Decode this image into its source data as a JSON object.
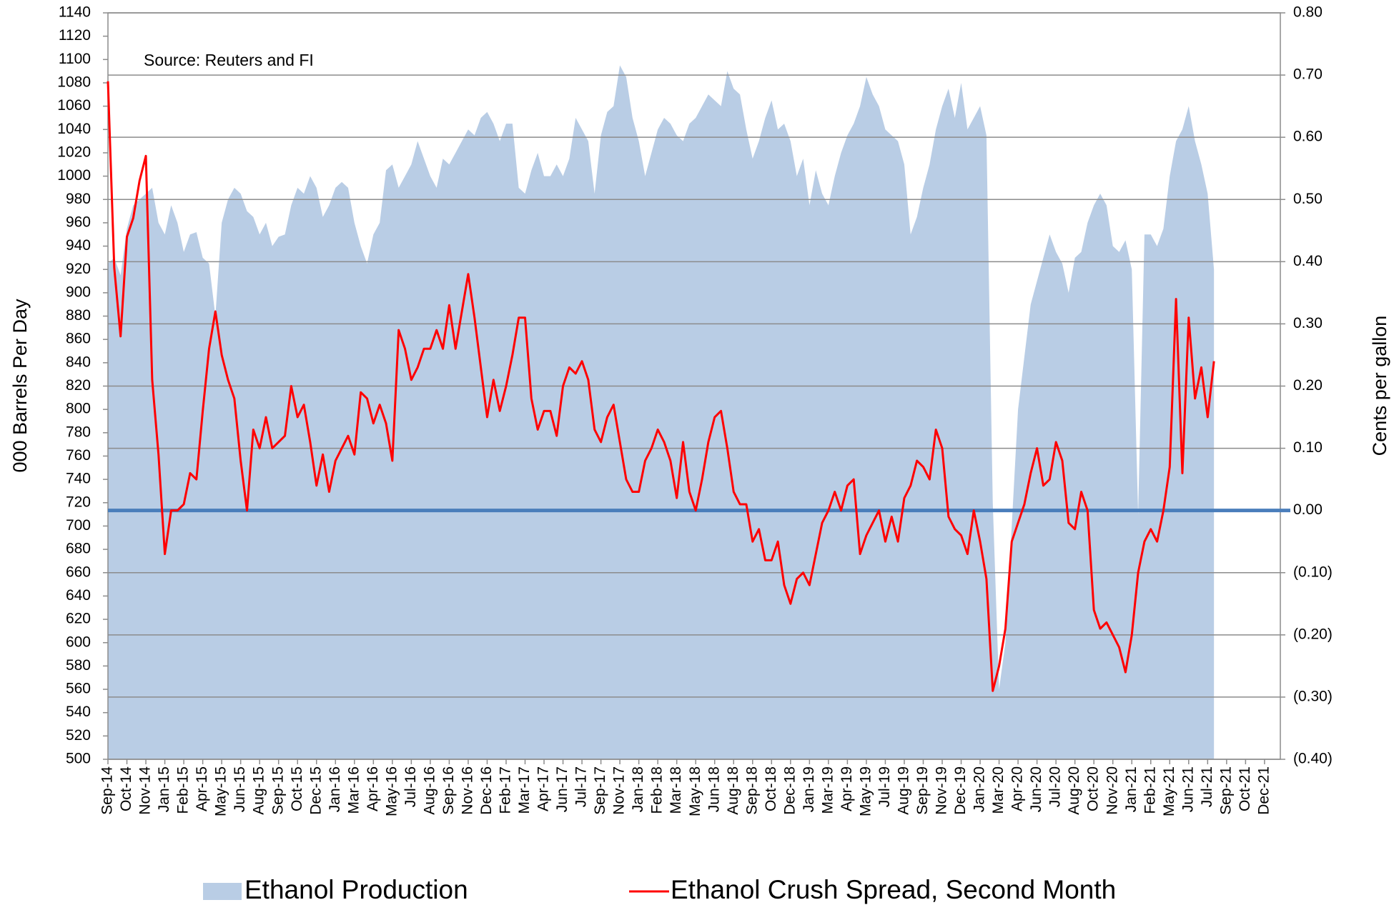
{
  "chart_data": {
    "type": "combo",
    "annotation": "Source: Reuters and FI",
    "ylabel": "000 Barrels Per Day",
    "y2label": "Cents per gallon",
    "legend": "bottom",
    "grid": true,
    "ylim": [
      500,
      1140
    ],
    "yticks": [
      500,
      520,
      540,
      560,
      580,
      600,
      620,
      640,
      660,
      680,
      700,
      720,
      740,
      760,
      780,
      800,
      820,
      840,
      860,
      880,
      900,
      920,
      940,
      960,
      980,
      1000,
      1020,
      1040,
      1060,
      1080,
      1100,
      1120,
      1140
    ],
    "y2lim": [
      -0.4,
      0.8
    ],
    "y2ticks": [
      {
        "value": 0.8,
        "label": "0.80"
      },
      {
        "value": 0.7,
        "label": "0.70"
      },
      {
        "value": 0.6,
        "label": "0.60"
      },
      {
        "value": 0.5,
        "label": "0.50"
      },
      {
        "value": 0.4,
        "label": "0.40"
      },
      {
        "value": 0.3,
        "label": "0.30"
      },
      {
        "value": 0.2,
        "label": "0.20"
      },
      {
        "value": 0.1,
        "label": "0.10"
      },
      {
        "value": 0,
        "label": "0.00"
      },
      {
        "value": -0.1,
        "label": "(0.10)"
      },
      {
        "value": -0.2,
        "label": "(0.20)"
      },
      {
        "value": -0.3,
        "label": "(0.30)"
      },
      {
        "value": -0.4,
        "label": "(0.40)"
      }
    ],
    "y2tick_negative_color": "#ff0000",
    "reference_line": {
      "value": 0,
      "axis": "y2",
      "color": "#4a7ebb"
    },
    "categories": [
      "Sep-14",
      null,
      null,
      "Oct-14",
      null,
      null,
      "Nov-14",
      null,
      null,
      "Jan-15",
      null,
      null,
      "Feb-15",
      null,
      null,
      "Apr-15",
      null,
      null,
      "May-15",
      null,
      null,
      "Jun-15",
      null,
      null,
      "Aug-15",
      null,
      null,
      "Sep-15",
      null,
      null,
      "Oct-15",
      null,
      null,
      "Dec-15",
      null,
      null,
      "Jan-16",
      null,
      null,
      "Mar-16",
      null,
      null,
      "Apr-16",
      null,
      null,
      "May-16",
      null,
      null,
      "Jul-16",
      null,
      null,
      "Aug-16",
      null,
      null,
      "Sep-16",
      null,
      null,
      "Nov-16",
      null,
      null,
      "Dec-16",
      null,
      null,
      "Feb-17",
      null,
      null,
      "Mar-17",
      null,
      null,
      "Apr-17",
      null,
      null,
      "Jun-17",
      null,
      null,
      "Jul-17",
      null,
      null,
      "Sep-17",
      null,
      null,
      "Nov-17",
      null,
      null,
      "Jan-18",
      null,
      null,
      "Feb-18",
      null,
      null,
      "Mar-18",
      null,
      null,
      "May-18",
      null,
      null,
      "Jun-18",
      null,
      null,
      "Aug-18",
      null,
      null,
      "Sep-18",
      null,
      null,
      "Oct-18",
      null,
      null,
      "Dec-18",
      null,
      null,
      "Jan-19",
      null,
      null,
      "Mar-19",
      null,
      null,
      "Apr-19",
      null,
      null,
      "May-19",
      null,
      null,
      "Jul-19",
      null,
      null,
      "Aug-19",
      null,
      null,
      "Sep-19",
      null,
      null,
      "Nov-19",
      null,
      null,
      "Dec-19",
      null,
      null,
      "Jan-20",
      null,
      null,
      "Mar-20",
      null,
      null,
      "Apr-20",
      null,
      null,
      "Jun-20",
      null,
      null,
      "Jul-20",
      null,
      null,
      "Aug-20",
      null,
      null,
      "Oct-20",
      null,
      null,
      "Nov-20",
      null,
      null,
      "Jan-21",
      null,
      null,
      "Feb-21",
      null,
      null,
      "May-21",
      null,
      null,
      "Jun-21",
      null,
      null,
      "Jul-21",
      null,
      null,
      "Sep-21",
      null,
      null,
      "Oct-21",
      null,
      null,
      "Dec-21",
      null,
      null
    ],
    "series": [
      {
        "name": "Ethanol Production",
        "type": "area",
        "axis": "y",
        "color": "#b9cde5",
        "values": [
          925,
          930,
          915,
          955,
          975,
          980,
          985,
          990,
          960,
          950,
          975,
          960,
          935,
          950,
          952,
          930,
          925,
          880,
          960,
          980,
          990,
          985,
          970,
          965,
          950,
          960,
          940,
          948,
          950,
          975,
          990,
          985,
          1000,
          990,
          965,
          975,
          990,
          995,
          990,
          960,
          940,
          925,
          950,
          960,
          1005,
          1010,
          990,
          1000,
          1010,
          1030,
          1015,
          1000,
          990,
          1015,
          1010,
          1020,
          1030,
          1040,
          1035,
          1050,
          1055,
          1045,
          1030,
          1045,
          1045,
          990,
          985,
          1005,
          1020,
          1000,
          1000,
          1010,
          1000,
          1015,
          1050,
          1040,
          1030,
          985,
          1035,
          1055,
          1060,
          1095,
          1085,
          1050,
          1030,
          1000,
          1020,
          1040,
          1050,
          1045,
          1035,
          1030,
          1045,
          1050,
          1060,
          1070,
          1065,
          1060,
          1090,
          1075,
          1070,
          1040,
          1015,
          1030,
          1050,
          1065,
          1040,
          1045,
          1030,
          1000,
          1015,
          975,
          1005,
          985,
          975,
          1000,
          1020,
          1035,
          1045,
          1060,
          1085,
          1070,
          1060,
          1040,
          1035,
          1030,
          1010,
          950,
          965,
          990,
          1010,
          1040,
          1060,
          1075,
          1050,
          1080,
          1040,
          1050,
          1060,
          1035,
          720,
          560,
          600,
          700,
          800,
          845,
          890,
          910,
          930,
          950,
          935,
          925,
          900,
          930,
          935,
          960,
          975,
          985,
          975,
          940,
          935,
          945,
          920,
          710,
          950,
          950,
          940,
          955,
          1000,
          1030,
          1040,
          1060,
          1030,
          1010,
          985,
          920,
          null,
          null,
          null,
          null,
          null,
          null,
          null,
          null,
          null,
          null
        ]
      },
      {
        "name": "Ethanol Crush Spread, Second Month",
        "type": "line",
        "axis": "y2",
        "color": "#ff0000",
        "values": [
          0.69,
          0.39,
          0.28,
          0.44,
          0.47,
          0.53,
          0.57,
          0.21,
          0.09,
          -0.07,
          0.0,
          0.0,
          0.01,
          0.06,
          0.05,
          0.16,
          0.26,
          0.32,
          0.25,
          0.21,
          0.18,
          0.08,
          0.0,
          0.13,
          0.1,
          0.15,
          0.1,
          0.11,
          0.12,
          0.2,
          0.15,
          0.17,
          0.11,
          0.04,
          0.09,
          0.03,
          0.08,
          0.1,
          0.12,
          0.09,
          0.19,
          0.18,
          0.14,
          0.17,
          0.14,
          0.08,
          0.29,
          0.26,
          0.21,
          0.23,
          0.26,
          0.26,
          0.29,
          0.26,
          0.33,
          0.26,
          0.32,
          0.38,
          0.31,
          0.23,
          0.15,
          0.21,
          0.16,
          0.2,
          0.25,
          0.31,
          0.31,
          0.18,
          0.13,
          0.16,
          0.16,
          0.12,
          0.2,
          0.23,
          0.22,
          0.24,
          0.21,
          0.13,
          0.11,
          0.15,
          0.17,
          0.11,
          0.05,
          0.03,
          0.03,
          0.08,
          0.1,
          0.13,
          0.11,
          0.08,
          0.02,
          0.11,
          0.03,
          0.0,
          0.05,
          0.11,
          0.15,
          0.16,
          0.1,
          0.03,
          0.01,
          0.01,
          -0.05,
          -0.03,
          -0.08,
          -0.08,
          -0.05,
          -0.12,
          -0.15,
          -0.11,
          -0.1,
          -0.12,
          -0.07,
          -0.02,
          0.0,
          0.03,
          0.0,
          0.04,
          0.05,
          -0.07,
          -0.04,
          -0.02,
          0.0,
          -0.05,
          -0.01,
          -0.05,
          0.02,
          0.04,
          0.08,
          0.07,
          0.05,
          0.13,
          0.1,
          -0.01,
          -0.03,
          -0.04,
          -0.07,
          0.0,
          -0.05,
          -0.11,
          -0.29,
          -0.25,
          -0.19,
          -0.05,
          -0.02,
          0.01,
          0.06,
          0.1,
          0.04,
          0.05,
          0.11,
          0.08,
          -0.02,
          -0.03,
          0.03,
          0.0,
          -0.16,
          -0.19,
          -0.18,
          -0.2,
          -0.22,
          -0.26,
          -0.2,
          -0.1,
          -0.05,
          -0.03,
          -0.05,
          0.0,
          0.07,
          0.34,
          0.06,
          0.31,
          0.18,
          0.23,
          0.15,
          0.24,
          null,
          null,
          null,
          null,
          null,
          null,
          null,
          null,
          null,
          null
        ]
      }
    ]
  }
}
